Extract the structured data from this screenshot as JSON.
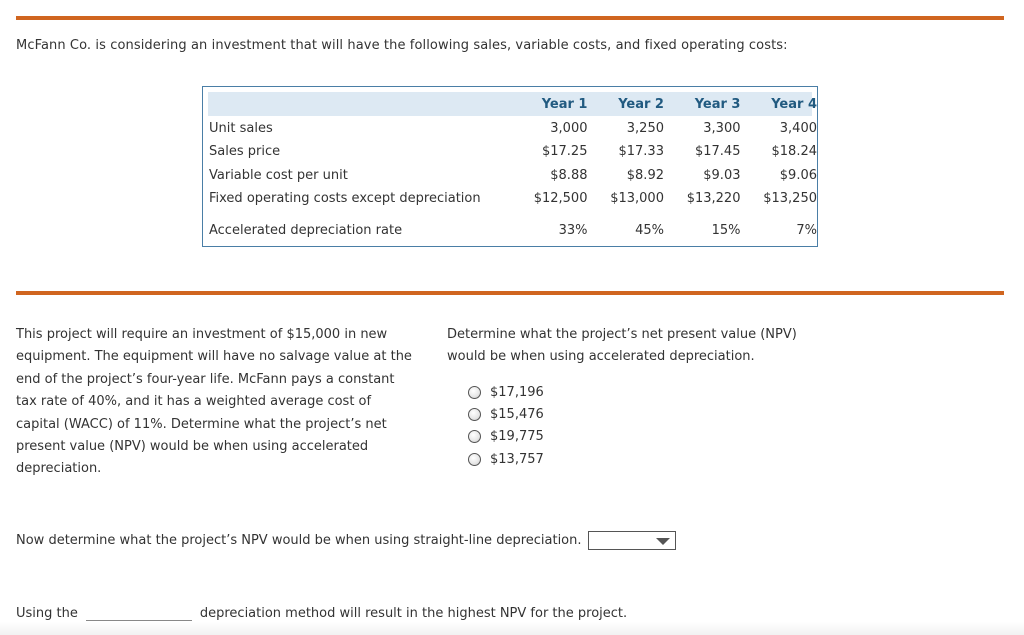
{
  "intro": "McFann Co. is considering an investment that will have the following sales, variable costs, and fixed operating costs:",
  "table": {
    "headers": [
      "Year 1",
      "Year 2",
      "Year 3",
      "Year 4"
    ],
    "rows": [
      {
        "label": "Unit sales",
        "values": [
          "3,000",
          "3,250",
          "3,300",
          "3,400"
        ]
      },
      {
        "label": "Sales price",
        "values": [
          "$17.25",
          "$17.33",
          "$17.45",
          "$18.24"
        ]
      },
      {
        "label": "Variable cost per unit",
        "values": [
          "$8.88",
          "$8.92",
          "$9.03",
          "$9.06"
        ]
      },
      {
        "label": "Fixed operating costs except depreciation",
        "values": [
          "$12,500",
          "$13,000",
          "$13,220",
          "$13,250"
        ]
      }
    ],
    "depreciation_row": {
      "label": "Accelerated depreciation rate",
      "values": [
        "33%",
        "45%",
        "15%",
        "7%"
      ]
    }
  },
  "left_paragraph": "This project will require an investment of $15,000 in new equipment. The equipment will have no salvage value at the end of the project’s four-year life. McFann pays a constant tax rate of 40%, and it has a weighted average cost of capital (WACC) of 11%. Determine what the project’s net present value (NPV) would be when using accelerated depreciation.",
  "question": "Determine what the project’s net present value (NPV) would be when using accelerated depreciation.",
  "options": [
    "$17,196",
    "$15,476",
    "$19,775",
    "$13,757"
  ],
  "straight_line_prompt": "Now determine what the project’s NPV would be when using straight-line depreciation.",
  "straight_line_value": "",
  "method_prefix": "Using the",
  "method_suffix": "depreciation method will result in the highest NPV for the project.",
  "colors": {
    "accent_rule": "#d0651f",
    "table_border": "#4a7ea6",
    "header_text": "#215a80",
    "header_bg": "#dde9f3"
  }
}
